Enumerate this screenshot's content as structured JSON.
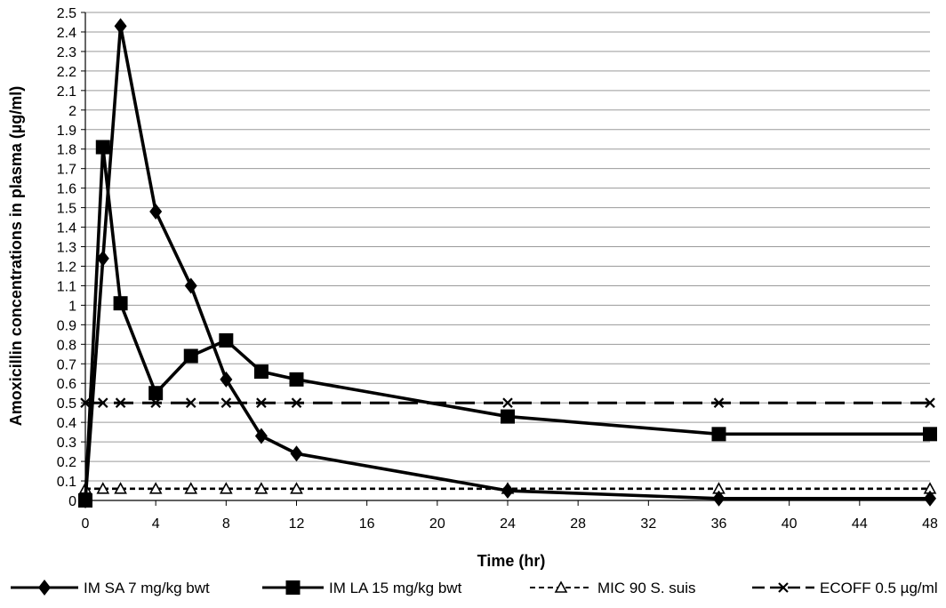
{
  "chart_data": {
    "type": "line",
    "title": "",
    "xlabel": "Time (hr)",
    "ylabel": "Amoxicillin concentrations in plasma (µg/ml)",
    "xlim": [
      0,
      48
    ],
    "ylim": [
      0,
      2.5
    ],
    "x_ticks": [
      "0",
      "4",
      "8",
      "12",
      "16",
      "20",
      "24",
      "28",
      "32",
      "36",
      "40",
      "44",
      "48"
    ],
    "y_ticks": [
      "0",
      "0.1",
      "0.2",
      "0.3",
      "0.4",
      "0.5",
      "0.6",
      "0.7",
      "0.8",
      "0.9",
      "1",
      "1.1",
      "1.2",
      "1.3",
      "1.4",
      "1.5",
      "1.6",
      "1.7",
      "1.8",
      "1.9",
      "2",
      "2.1",
      "2.2",
      "2.3",
      "2.4",
      "2.5"
    ],
    "grid": "horizontal",
    "legend": "bottom",
    "series": [
      {
        "name": "IM SA 7 mg/kg  bwt",
        "marker": "diamond",
        "line": "solid",
        "color": "#000000",
        "x": [
          0,
          1,
          2,
          4,
          6,
          8,
          10,
          12,
          24,
          36,
          48
        ],
        "y": [
          0,
          1.24,
          2.43,
          1.48,
          1.1,
          0.62,
          0.33,
          0.24,
          0.05,
          0.01,
          0.01
        ]
      },
      {
        "name": "IM LA 15 mg/kg  bwt",
        "marker": "square",
        "line": "solid",
        "color": "#000000",
        "x": [
          0,
          1,
          2,
          4,
          6,
          8,
          10,
          12,
          24,
          36,
          48
        ],
        "y": [
          0,
          1.81,
          1.01,
          0.55,
          0.74,
          0.82,
          0.66,
          0.62,
          0.43,
          0.34,
          0.34
        ]
      },
      {
        "name": "MIC 90 S. suis",
        "marker": "triangle-open",
        "line": "dashed",
        "color": "#000000",
        "x": [
          0,
          1,
          2,
          4,
          6,
          8,
          10,
          12,
          24,
          36,
          48
        ],
        "y": [
          0.06,
          0.06,
          0.06,
          0.06,
          0.06,
          0.06,
          0.06,
          0.06,
          0.06,
          0.06,
          0.06
        ]
      },
      {
        "name": "ECOFF 0.5 µg/ml",
        "marker": "x",
        "line": "long-dash",
        "color": "#000000",
        "x": [
          0,
          1,
          2,
          4,
          6,
          8,
          10,
          12,
          24,
          36,
          48
        ],
        "y": [
          0.5,
          0.5,
          0.5,
          0.5,
          0.5,
          0.5,
          0.5,
          0.5,
          0.5,
          0.5,
          0.5
        ]
      }
    ]
  }
}
